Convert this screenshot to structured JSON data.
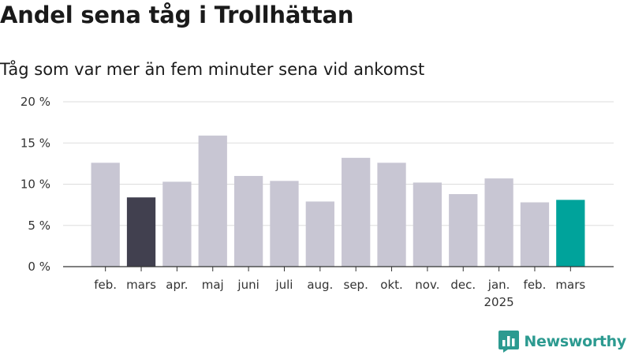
{
  "title": "Andel sena tåg i Trollhättan",
  "subtitle": "Tåg som var mer än fem minuter sena vid ankomst",
  "brand": {
    "name": "Newsworthy",
    "color": "#2c9a90",
    "icon": "bar-chart-speech-bubble-icon"
  },
  "colors": {
    "default": "#c8c6d3",
    "previous_year": "#41404f",
    "current": "#00a39b",
    "grid": "#dddddd"
  },
  "chart_data": {
    "type": "bar",
    "title": "Andel sena tåg i Trollhättan",
    "subtitle": "Tåg som var mer än fem minuter sena vid ankomst",
    "categories": [
      "feb.",
      "mars",
      "apr.",
      "maj",
      "juni",
      "juli",
      "aug.",
      "sep.",
      "okt.",
      "nov.",
      "dec.",
      "jan.",
      "feb.",
      "mars"
    ],
    "category_sublabels": [
      "",
      "",
      "",
      "",
      "",
      "",
      "",
      "",
      "",
      "",
      "",
      "2025",
      "",
      ""
    ],
    "values": [
      12.6,
      8.4,
      10.3,
      15.9,
      11.0,
      10.4,
      7.9,
      13.2,
      12.6,
      10.2,
      8.8,
      10.7,
      7.8,
      8.1
    ],
    "highlight": {
      "1": "previous_year",
      "13": "current"
    },
    "ylim": [
      0,
      20
    ],
    "yticks": [
      0,
      5,
      10,
      15,
      20
    ],
    "ytick_labels": [
      "0 %",
      "5 %",
      "10 %",
      "15 %",
      "20 %"
    ],
    "grid": true,
    "xlabel": "",
    "ylabel": ""
  }
}
